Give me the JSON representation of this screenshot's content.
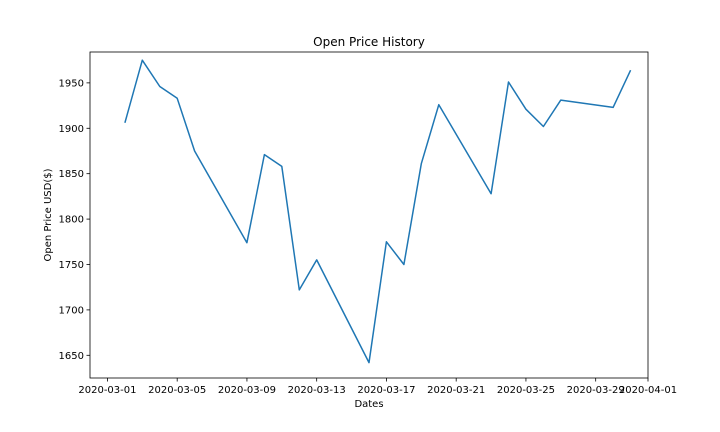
{
  "chart_data": {
    "type": "line",
    "title": "Open Price History",
    "xlabel": "Dates",
    "ylabel": "Open Price USD($)",
    "x_ticks": [
      "2020-03-01",
      "2020-03-05",
      "2020-03-09",
      "2020-03-13",
      "2020-03-17",
      "2020-03-21",
      "2020-03-25",
      "2020-03-29",
      "2020-04-01"
    ],
    "y_ticks": [
      1650,
      1700,
      1750,
      1800,
      1850,
      1900,
      1950
    ],
    "xlim": [
      "2020-02-29",
      "2020-04-01"
    ],
    "ylim": [
      1625,
      1984
    ],
    "grid": false,
    "series": [
      {
        "color": "#1f77b4",
        "points": [
          {
            "x": "2020-03-02",
            "y": 1906
          },
          {
            "x": "2020-03-03",
            "y": 1975
          },
          {
            "x": "2020-03-04",
            "y": 1946
          },
          {
            "x": "2020-03-05",
            "y": 1933
          },
          {
            "x": "2020-03-06",
            "y": 1875
          },
          {
            "x": "2020-03-09",
            "y": 1774
          },
          {
            "x": "2020-03-10",
            "y": 1871
          },
          {
            "x": "2020-03-11",
            "y": 1858
          },
          {
            "x": "2020-03-12",
            "y": 1722
          },
          {
            "x": "2020-03-13",
            "y": 1755
          },
          {
            "x": "2020-03-16",
            "y": 1642
          },
          {
            "x": "2020-03-17",
            "y": 1775
          },
          {
            "x": "2020-03-18",
            "y": 1750
          },
          {
            "x": "2020-03-19",
            "y": 1861
          },
          {
            "x": "2020-03-20",
            "y": 1926
          },
          {
            "x": "2020-03-23",
            "y": 1828
          },
          {
            "x": "2020-03-24",
            "y": 1951
          },
          {
            "x": "2020-03-25",
            "y": 1921
          },
          {
            "x": "2020-03-26",
            "y": 1902
          },
          {
            "x": "2020-03-27",
            "y": 1931
          },
          {
            "x": "2020-03-30",
            "y": 1923
          },
          {
            "x": "2020-03-31",
            "y": 1964
          }
        ]
      }
    ]
  }
}
